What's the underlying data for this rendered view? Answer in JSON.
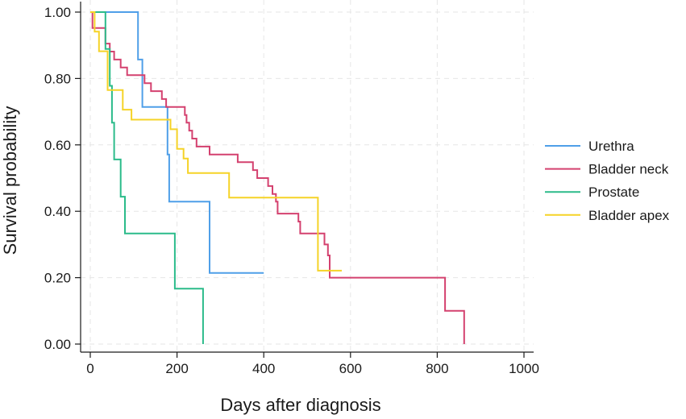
{
  "chart_data": {
    "type": "line",
    "step": true,
    "title": "",
    "xlabel": "Days after diagnosis",
    "ylabel": "Survival probability",
    "xlim": [
      0,
      1000
    ],
    "ylim": [
      0,
      1
    ],
    "xticks": [
      0,
      200,
      400,
      600,
      800,
      1000
    ],
    "xtick_labels": [
      "0",
      "200",
      "400",
      "600",
      "800",
      "1000"
    ],
    "yticks": [
      0,
      0.2,
      0.4,
      0.6,
      0.8,
      1.0
    ],
    "ytick_labels": [
      "0.00",
      "0.20",
      "0.40",
      "0.60",
      "0.80",
      "1.00"
    ],
    "grid": true,
    "legend_position": "right",
    "series": [
      {
        "name": "Urethra",
        "color": "#4f9fe8",
        "points": [
          [
            0,
            1.0
          ],
          [
            110,
            1.0
          ],
          [
            110,
            0.857
          ],
          [
            120,
            0.857
          ],
          [
            120,
            0.714
          ],
          [
            178,
            0.714
          ],
          [
            178,
            0.571
          ],
          [
            182,
            0.571
          ],
          [
            182,
            0.429
          ],
          [
            275,
            0.429
          ],
          [
            275,
            0.214
          ],
          [
            400,
            0.214
          ]
        ]
      },
      {
        "name": "Bladder neck",
        "color": "#d4416f",
        "points": [
          [
            0,
            1.0
          ],
          [
            5,
            1.0
          ],
          [
            5,
            0.952
          ],
          [
            35,
            0.952
          ],
          [
            35,
            0.905
          ],
          [
            45,
            0.905
          ],
          [
            45,
            0.881
          ],
          [
            55,
            0.881
          ],
          [
            55,
            0.857
          ],
          [
            70,
            0.857
          ],
          [
            70,
            0.833
          ],
          [
            85,
            0.833
          ],
          [
            85,
            0.81
          ],
          [
            125,
            0.81
          ],
          [
            125,
            0.786
          ],
          [
            140,
            0.786
          ],
          [
            140,
            0.762
          ],
          [
            165,
            0.762
          ],
          [
            165,
            0.738
          ],
          [
            175,
            0.738
          ],
          [
            175,
            0.714
          ],
          [
            218,
            0.714
          ],
          [
            218,
            0.69
          ],
          [
            222,
            0.69
          ],
          [
            222,
            0.667
          ],
          [
            228,
            0.667
          ],
          [
            228,
            0.643
          ],
          [
            235,
            0.643
          ],
          [
            235,
            0.619
          ],
          [
            245,
            0.619
          ],
          [
            245,
            0.595
          ],
          [
            275,
            0.595
          ],
          [
            275,
            0.571
          ],
          [
            340,
            0.571
          ],
          [
            340,
            0.548
          ],
          [
            375,
            0.548
          ],
          [
            375,
            0.524
          ],
          [
            385,
            0.524
          ],
          [
            385,
            0.5
          ],
          [
            410,
            0.5
          ],
          [
            410,
            0.476
          ],
          [
            420,
            0.476
          ],
          [
            420,
            0.452
          ],
          [
            428,
            0.452
          ],
          [
            428,
            0.429
          ],
          [
            432,
            0.429
          ],
          [
            432,
            0.393
          ],
          [
            480,
            0.393
          ],
          [
            480,
            0.369
          ],
          [
            484,
            0.369
          ],
          [
            484,
            0.333
          ],
          [
            540,
            0.333
          ],
          [
            540,
            0.3
          ],
          [
            548,
            0.3
          ],
          [
            548,
            0.267
          ],
          [
            552,
            0.267
          ],
          [
            552,
            0.2
          ],
          [
            818,
            0.2
          ],
          [
            818,
            0.1
          ],
          [
            862,
            0.1
          ],
          [
            862,
            0.0
          ]
        ]
      },
      {
        "name": "Prostate",
        "color": "#2bbb8a",
        "points": [
          [
            0,
            1.0
          ],
          [
            35,
            1.0
          ],
          [
            35,
            0.889
          ],
          [
            45,
            0.889
          ],
          [
            45,
            0.778
          ],
          [
            50,
            0.778
          ],
          [
            50,
            0.667
          ],
          [
            55,
            0.667
          ],
          [
            55,
            0.556
          ],
          [
            70,
            0.556
          ],
          [
            70,
            0.444
          ],
          [
            80,
            0.444
          ],
          [
            80,
            0.333
          ],
          [
            195,
            0.333
          ],
          [
            195,
            0.167
          ],
          [
            260,
            0.167
          ],
          [
            260,
            0.0
          ]
        ]
      },
      {
        "name": "Bladder apex",
        "color": "#f5d327",
        "points": [
          [
            0,
            1.0
          ],
          [
            10,
            1.0
          ],
          [
            10,
            0.941
          ],
          [
            20,
            0.941
          ],
          [
            20,
            0.882
          ],
          [
            40,
            0.882
          ],
          [
            40,
            0.765
          ],
          [
            75,
            0.765
          ],
          [
            75,
            0.706
          ],
          [
            95,
            0.706
          ],
          [
            95,
            0.676
          ],
          [
            185,
            0.676
          ],
          [
            185,
            0.647
          ],
          [
            200,
            0.647
          ],
          [
            200,
            0.588
          ],
          [
            215,
            0.588
          ],
          [
            215,
            0.559
          ],
          [
            225,
            0.559
          ],
          [
            225,
            0.515
          ],
          [
            320,
            0.515
          ],
          [
            320,
            0.441
          ],
          [
            525,
            0.441
          ],
          [
            525,
            0.221
          ],
          [
            580,
            0.221
          ]
        ]
      }
    ]
  }
}
